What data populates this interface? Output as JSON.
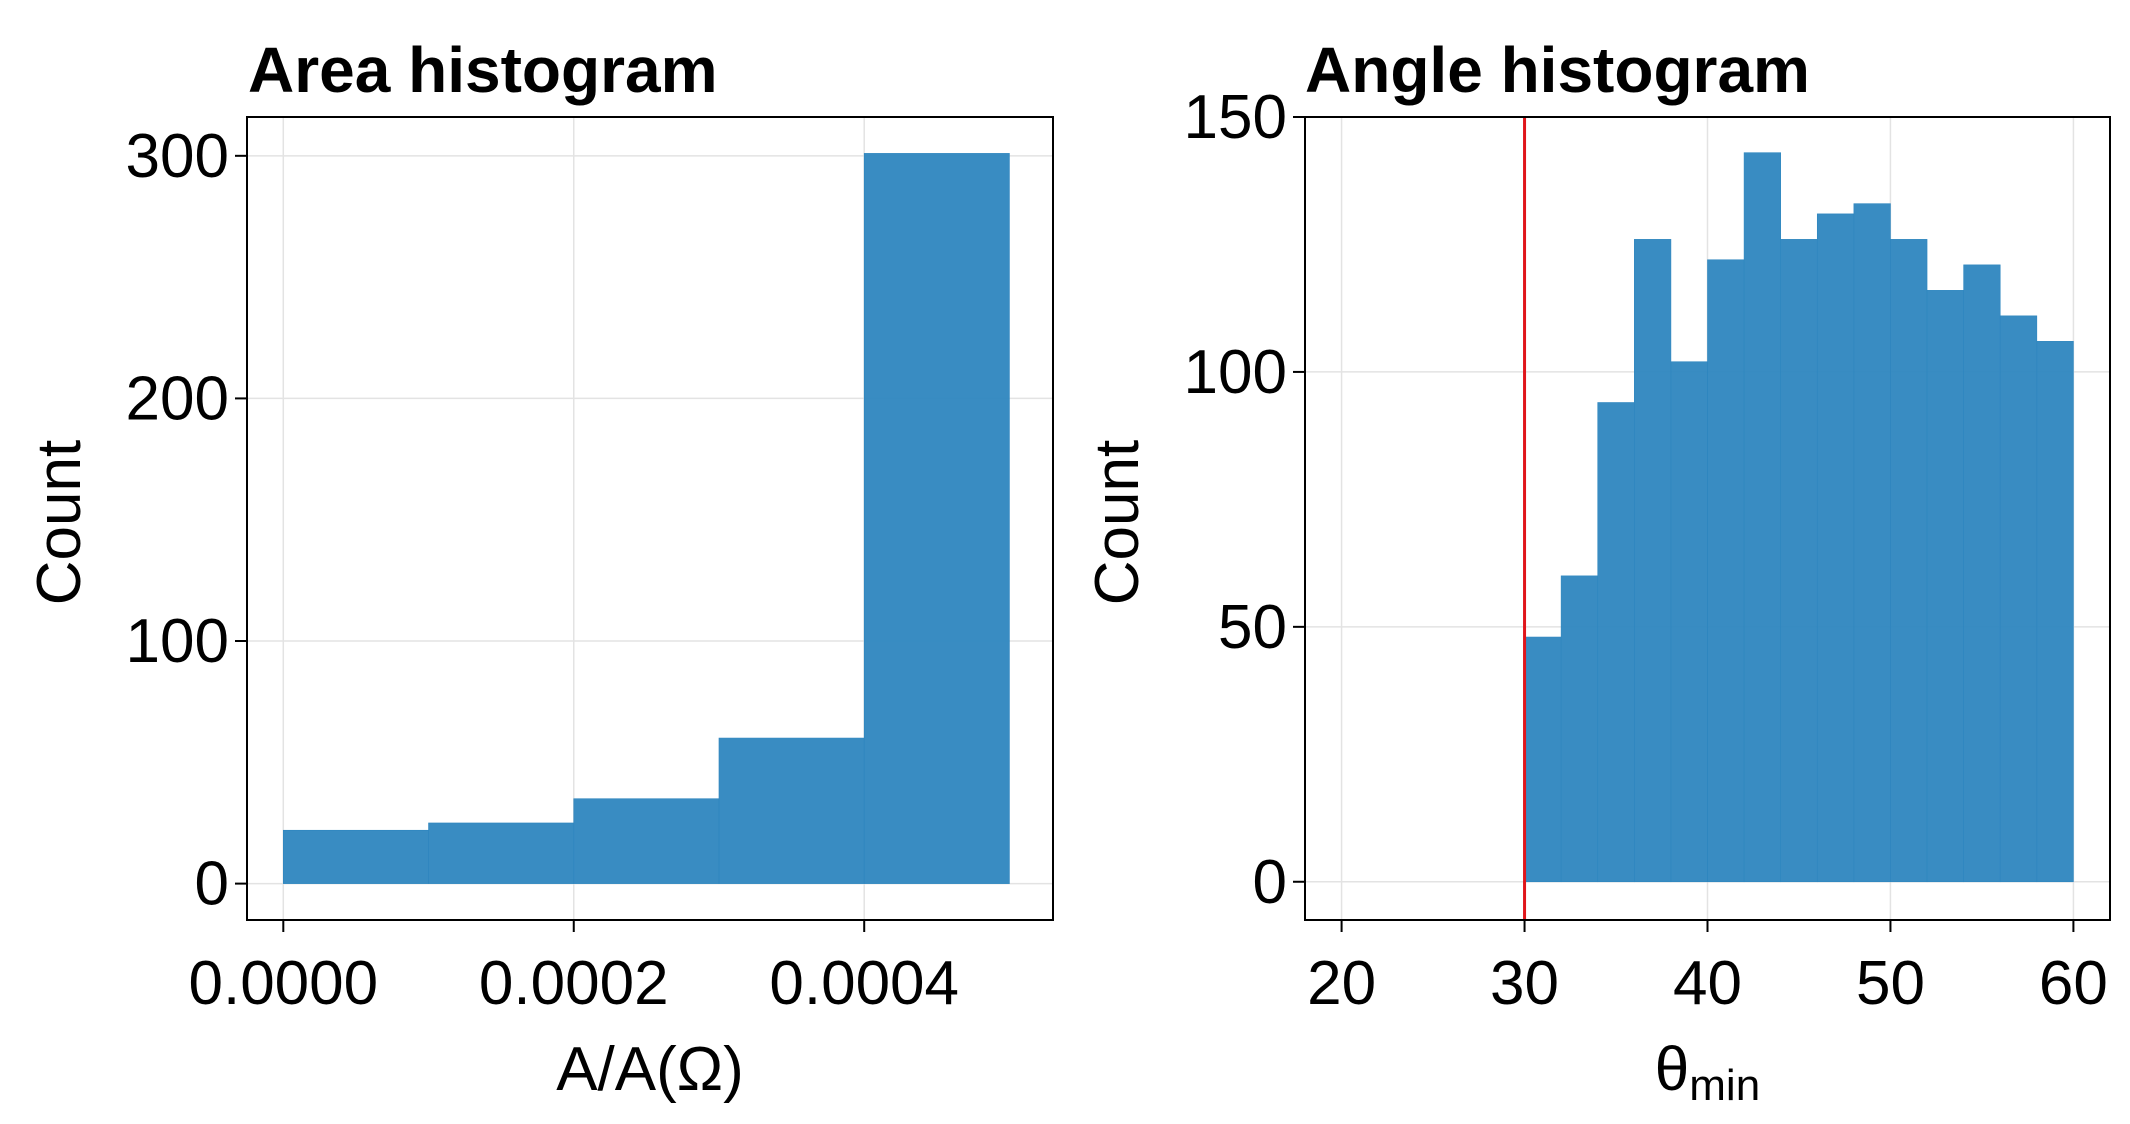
{
  "chart_data": [
    {
      "type": "bar",
      "title": "Area histogram",
      "xlabel": "A/A(Ω)",
      "ylabel": "Count",
      "bin_edges": [
        0.0,
        0.0001,
        0.0002,
        0.0003,
        0.0004,
        0.0005
      ],
      "values": [
        22,
        25,
        35,
        60,
        301
      ],
      "xlim": [
        -2.5e-05,
        0.00053
      ],
      "ylim": [
        -15,
        316
      ],
      "xticks": [
        0.0,
        0.0002,
        0.0004
      ],
      "xtick_labels": [
        "0.0000",
        "0.0002",
        "0.0004"
      ],
      "yticks": [
        0,
        100,
        200,
        300
      ],
      "ytick_labels": [
        "0",
        "100",
        "200",
        "300"
      ],
      "grid": true,
      "bar_color": "#2e86bf"
    },
    {
      "type": "bar",
      "title": "Angle histogram",
      "xlabel": "θ",
      "xlabel_subscript": "min",
      "ylabel": "Count",
      "bin_edges": [
        30,
        32,
        34,
        36,
        38,
        40,
        42,
        44,
        46,
        48,
        50,
        52,
        54,
        56,
        58,
        60
      ],
      "values": [
        48,
        60,
        94,
        126,
        102,
        122,
        143,
        126,
        131,
        133,
        126,
        116,
        121,
        111,
        106
      ],
      "xlim": [
        18,
        62
      ],
      "ylim": [
        -7.5,
        150
      ],
      "xticks": [
        20,
        30,
        40,
        50,
        60
      ],
      "xtick_labels": [
        "20",
        "30",
        "40",
        "50",
        "60"
      ],
      "yticks": [
        0,
        50,
        100,
        150
      ],
      "ytick_labels": [
        "0",
        "50",
        "100",
        "150"
      ],
      "grid": true,
      "bar_color": "#2e86bf",
      "vline": {
        "x": 30,
        "color": "#e0161b"
      }
    }
  ]
}
